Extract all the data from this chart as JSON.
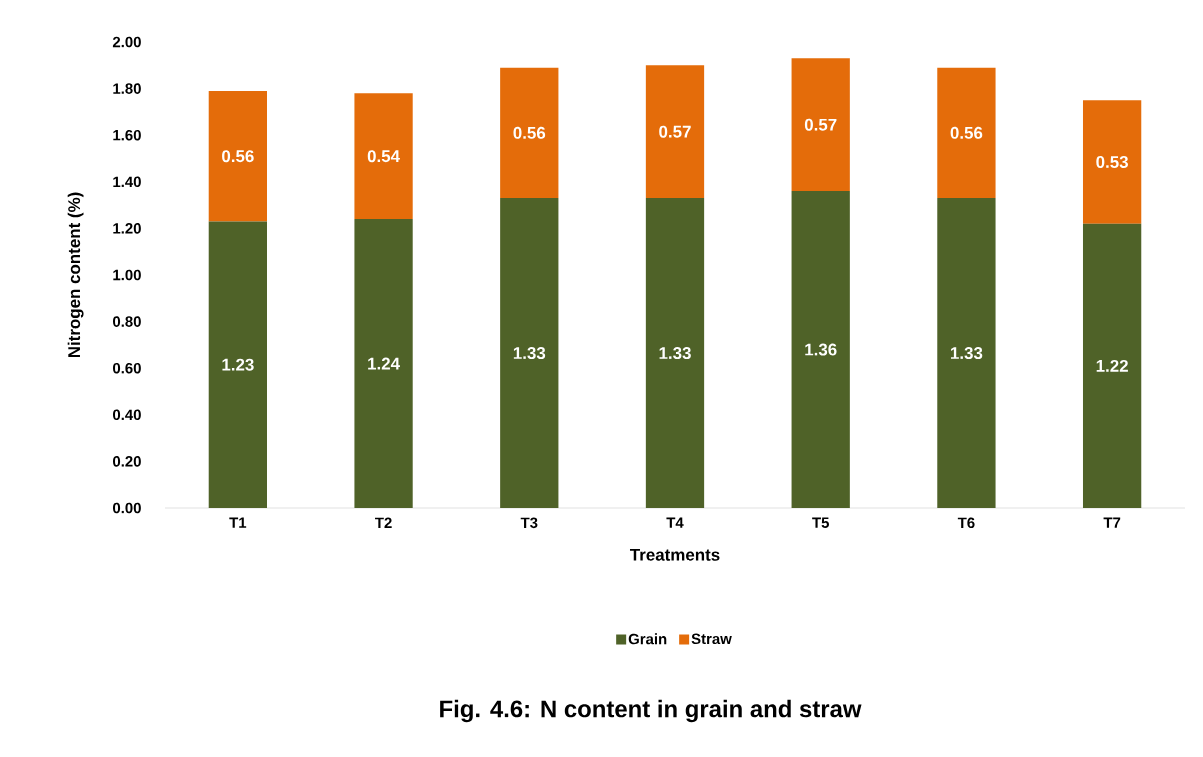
{
  "chart_data": {
    "type": "bar",
    "stacked": true,
    "title": "Fig. 4.6: N content in grain and straw",
    "xlabel": "Treatments",
    "ylabel": "Nitrogen content (%)",
    "categories": [
      "T1",
      "T2",
      "T3",
      "T4",
      "T5",
      "T6",
      "T7"
    ],
    "series": [
      {
        "name": "Grain",
        "color": "#4f6228",
        "values": [
          1.23,
          1.24,
          1.33,
          1.33,
          1.36,
          1.33,
          1.22
        ],
        "value_labels": [
          "1.23",
          "1.24",
          "1.33",
          "1.33",
          "1.36",
          "1.33",
          "1.22"
        ]
      },
      {
        "name": "Straw",
        "color": "#e46c0a",
        "values": [
          0.56,
          0.54,
          0.56,
          0.57,
          0.57,
          0.56,
          0.53
        ],
        "value_labels": [
          "0.56",
          "0.54",
          "0.56",
          "0.57",
          "0.57",
          "0.56",
          "0.53"
        ]
      }
    ],
    "ylim": [
      0,
      2
    ],
    "yticks": [
      {
        "value": 0,
        "label": "0.00"
      },
      {
        "value": 0.2,
        "label": "0.20"
      },
      {
        "value": 0.4,
        "label": "0.40"
      },
      {
        "value": 0.6,
        "label": "0.60"
      },
      {
        "value": 0.8,
        "label": "0.80"
      },
      {
        "value": 1.0,
        "label": "1.00"
      },
      {
        "value": 1.2,
        "label": "1.20"
      },
      {
        "value": 1.4,
        "label": "1.40"
      },
      {
        "value": 1.6,
        "label": "1.60"
      },
      {
        "value": 1.8,
        "label": "1.80"
      },
      {
        "value": 2.0,
        "label": "2.00"
      }
    ],
    "data_labels": true,
    "legend": "bottom",
    "grid": false
  }
}
